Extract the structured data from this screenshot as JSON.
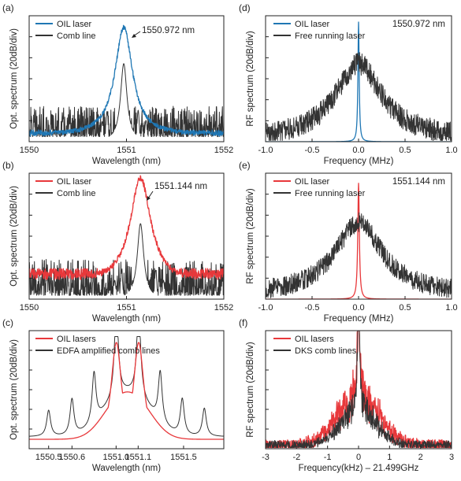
{
  "chart_data": [
    {
      "panel": "(a)",
      "type": "line",
      "xlabel": "Wavelength (nm)",
      "ylabel": "Opt. spectrum (20dB/div)",
      "xlim": [
        1550,
        1552
      ],
      "xticks": [
        "1550",
        "1551",
        "1552"
      ],
      "annotation": "1550.972 nm",
      "series": [
        {
          "name": "OIL laser",
          "color": "#1f77b4",
          "model": "lorentz_peak",
          "center": 1550.972,
          "peak": 0.86,
          "width": 0.11,
          "floor": 0.06,
          "noise": 0.035
        },
        {
          "name": "Comb line",
          "color": "#333333",
          "model": "comb_line",
          "center": 1550.972,
          "peak": 0.62,
          "width": 0.04,
          "sidelobes": [
            [
              1550.75,
              0.16
            ],
            [
              1550.8,
              0.24
            ],
            [
              1551.12,
              0.25
            ],
            [
              1551.2,
              0.17
            ]
          ],
          "floor": 0.04,
          "noise": 0.11
        }
      ]
    },
    {
      "panel": "(b)",
      "type": "line",
      "xlabel": "Wavelength (nm)",
      "ylabel": "Opt. spectrum (20dB/div)",
      "xlim": [
        1550,
        1552
      ],
      "xticks": [
        "1550",
        "1551",
        "1552"
      ],
      "annotation": "1551.144 nm",
      "series": [
        {
          "name": "OIL laser",
          "color": "#e8383b",
          "model": "lorentz_peak",
          "center": 1551.144,
          "peak": 0.84,
          "width": 0.13,
          "floor": 0.2,
          "noise": 0.045
        },
        {
          "name": "Comb line",
          "color": "#333333",
          "model": "comb_line",
          "center": 1551.144,
          "peak": 0.6,
          "width": 0.04,
          "sidelobes": [
            [
              1550.88,
              0.15
            ],
            [
              1550.95,
              0.22
            ],
            [
              1551.3,
              0.23
            ],
            [
              1551.38,
              0.15
            ]
          ],
          "floor": 0.03,
          "noise": 0.13
        }
      ]
    },
    {
      "panel": "(c)",
      "type": "line",
      "xlabel": "Wavelength (nm)",
      "ylabel": "Opt. spectrum (20dB/div)",
      "xlim": [
        1550.3,
        1551.8
      ],
      "xticks": [
        "1550.5",
        "1550.6",
        "1551.0",
        "1551.1",
        "1551.5"
      ],
      "xtick_values": [
        1550.45,
        1550.63,
        1550.97,
        1551.14,
        1551.49
      ],
      "series": [
        {
          "name": "OIL lasers",
          "color": "#e8383b",
          "model": "double_peak",
          "centers": [
            1550.972,
            1551.144
          ],
          "peak": 0.9,
          "width": 0.05,
          "shoulder": 0.42,
          "shoulder_width": 0.18,
          "floor": 0.08
        },
        {
          "name": "EDFA amplified comb lines",
          "color": "#333333",
          "model": "comb_set",
          "lines": [
            [
              1550.45,
              0.26
            ],
            [
              1550.63,
              0.36
            ],
            [
              1550.8,
              0.5
            ],
            [
              1550.972,
              0.9
            ],
            [
              1551.144,
              0.9
            ],
            [
              1551.31,
              0.5
            ],
            [
              1551.48,
              0.36
            ],
            [
              1551.65,
              0.28
            ]
          ],
          "width": 0.018,
          "shoulder": 0.4,
          "shoulder_width": 0.2,
          "floor": 0.1
        }
      ]
    },
    {
      "panel": "(d)",
      "type": "line",
      "xlabel": "Frequency (MHz)",
      "ylabel": "RF spectrum (20dB/div)",
      "xlim": [
        -1.0,
        1.0
      ],
      "xticks": [
        "-1.0",
        "-0.5",
        "0.0",
        "0.5",
        "1.0"
      ],
      "annotation": "1550.972 nm",
      "series": [
        {
          "name": "OIL laser",
          "color": "#1f77b4",
          "model": "narrow_spike",
          "center": 0.0,
          "peak": 0.95,
          "width": 0.008,
          "floor": 0.0
        },
        {
          "name": "Free running laser",
          "color": "#333333",
          "model": "broad_noise",
          "center": 0.0,
          "peak": 0.6,
          "width": 0.6,
          "floor": 0.02,
          "noise": 0.09
        }
      ]
    },
    {
      "panel": "(e)",
      "type": "line",
      "xlabel": "Frequency (MHz)",
      "ylabel": "RF spectrum (20dB/div)",
      "xlim": [
        -1.0,
        1.0
      ],
      "xticks": [
        "-1.0",
        "-0.5",
        "0.0",
        "0.5",
        "1.0"
      ],
      "annotation": "1551.144 nm",
      "series": [
        {
          "name": "OIL laser",
          "color": "#e8383b",
          "model": "narrow_spike",
          "center": 0.0,
          "peak": 0.92,
          "width": 0.01,
          "floor": 0.0
        },
        {
          "name": "Free running laser",
          "color": "#333333",
          "model": "broad_noise",
          "center": 0.0,
          "peak": 0.58,
          "width": 0.62,
          "floor": 0.03,
          "noise": 0.08
        }
      ]
    },
    {
      "panel": "(f)",
      "type": "line",
      "xlabel": "Frequency(kHz) – 21.499GHz",
      "ylabel": "RF spectrum (20dB/div)",
      "xlim": [
        -3,
        3
      ],
      "xticks": [
        "-3",
        "-2",
        "-1",
        "0",
        "1",
        "2",
        "3"
      ],
      "series": [
        {
          "name": "OIL lasers",
          "color": "#e8383b",
          "model": "noisy_spike",
          "center": 0.0,
          "peak": 0.85,
          "width": 0.05,
          "pedestal": 0.4,
          "pedestal_width": 1.0,
          "floor": 0.02,
          "noise": 0.11
        },
        {
          "name": "DKS comb lines",
          "color": "#333333",
          "model": "noisy_spike",
          "center": 0.0,
          "peak": 0.92,
          "width": 0.04,
          "pedestal": 0.3,
          "pedestal_width": 0.8,
          "floor": 0.03,
          "noise": 0.08
        }
      ]
    }
  ]
}
